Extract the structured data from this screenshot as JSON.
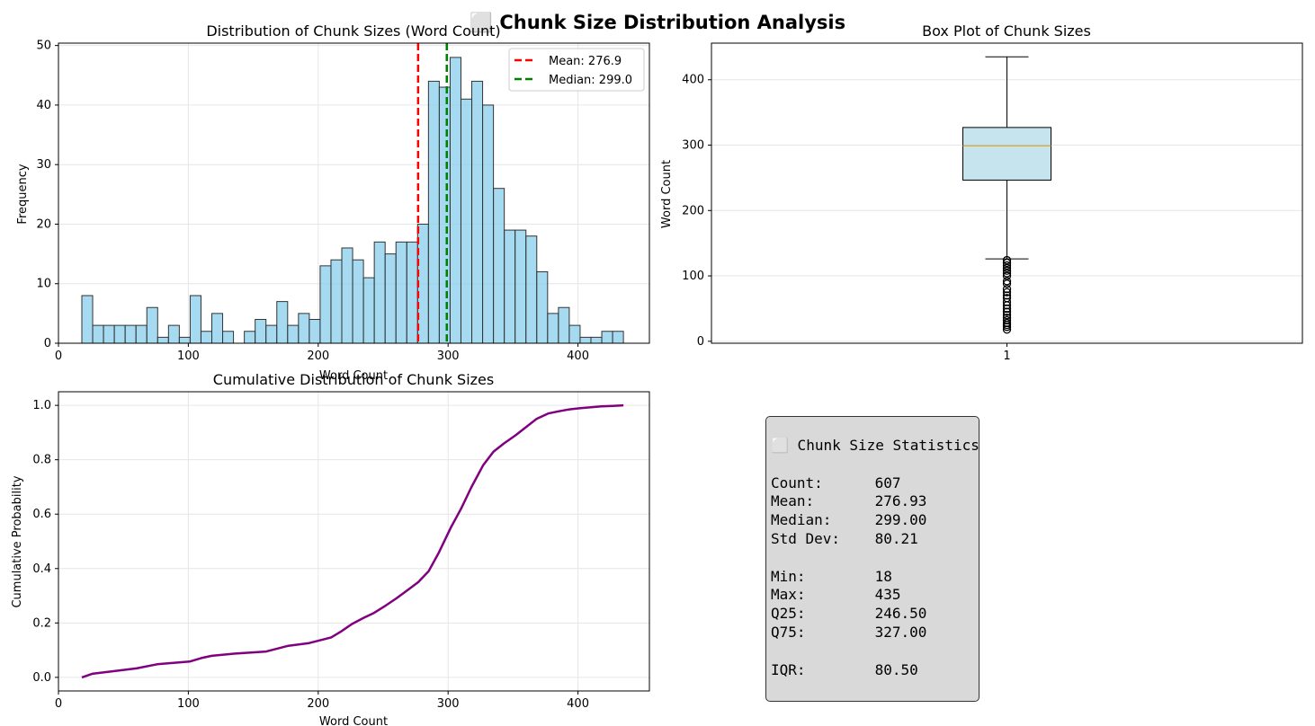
{
  "suptitle": "⬜ Chunk Size Distribution Analysis",
  "chart_data": [
    {
      "type": "bar",
      "title": "Distribution of Chunk Sizes (Word Count)",
      "xlabel": "Word Count",
      "ylabel": "Frequency",
      "xlim": [
        0,
        455
      ],
      "ylim": [
        0,
        50.4
      ],
      "xticks": [
        0,
        100,
        200,
        300,
        400
      ],
      "yticks": [
        0,
        10,
        20,
        30,
        40,
        50
      ],
      "bin_edges": [
        18,
        26.34,
        34.68,
        43.02,
        51.36,
        59.7,
        68.04,
        76.38,
        84.72,
        93.06,
        101.4,
        109.74,
        118.08,
        126.42,
        134.76,
        143.1,
        151.44,
        159.78,
        168.12,
        176.46,
        184.8,
        193.14,
        201.48,
        209.82,
        218.16,
        226.5,
        234.84,
        243.18,
        251.52,
        259.86,
        268.2,
        276.54,
        284.88,
        293.22,
        301.56,
        309.9,
        318.24,
        326.58,
        334.92,
        343.26,
        351.6,
        359.94,
        368.28,
        376.62,
        384.96,
        393.3,
        401.64,
        409.98,
        418.32,
        426.66,
        435
      ],
      "values": [
        8,
        3,
        3,
        3,
        3,
        3,
        6,
        1,
        3,
        1,
        8,
        2,
        5,
        2,
        0,
        2,
        4,
        3,
        7,
        3,
        5,
        4,
        13,
        14,
        16,
        14,
        11,
        17,
        15,
        17,
        17,
        20,
        44,
        43,
        48,
        41,
        44,
        40,
        26,
        19,
        19,
        18,
        12,
        5,
        6,
        3,
        1,
        1,
        2,
        2
      ],
      "bar_color": "#87CEEB",
      "vlines": [
        {
          "label": "Mean: 276.9",
          "x": 276.9,
          "color": "#ff0000"
        },
        {
          "label": "Median: 299.0",
          "x": 299.0,
          "color": "#008000"
        }
      ],
      "legend": "upper right"
    },
    {
      "type": "box",
      "title": "Box Plot of Chunk Sizes",
      "ylabel": "Word Count",
      "xticks": [
        "1"
      ],
      "yticks": [
        0,
        100,
        200,
        300,
        400
      ],
      "ylim": [
        -3,
        456
      ],
      "whisker_low": 126,
      "q1": 246.5,
      "median": 299,
      "q3": 327,
      "whisker_high": 435,
      "outliers": [
        18,
        22,
        25,
        28,
        32,
        36,
        40,
        45,
        50,
        55,
        60,
        66,
        70,
        75,
        80,
        88,
        92,
        100,
        104,
        108,
        112,
        116,
        120,
        124
      ],
      "box_color": "#ADD8E6"
    },
    {
      "type": "line",
      "title": "Cumulative Distribution of Chunk Sizes",
      "xlabel": "Word Count",
      "ylabel": "Cumulative Probability",
      "xlim": [
        0,
        455
      ],
      "ylim": [
        -0.05,
        1.05
      ],
      "xticks": [
        0,
        100,
        200,
        300,
        400
      ],
      "yticks": [
        0.0,
        0.2,
        0.4,
        0.6,
        0.8,
        1.0
      ],
      "color": "#800080",
      "x": [
        18,
        26,
        43,
        60,
        76,
        101,
        110,
        118,
        135,
        160,
        177,
        193,
        210,
        218,
        226,
        235,
        243,
        252,
        260,
        268,
        277,
        285,
        293,
        302,
        310,
        318,
        327,
        335,
        343,
        352,
        360,
        368,
        377,
        385,
        393,
        402,
        410,
        418,
        427,
        435
      ],
      "y": [
        0.0,
        0.013,
        0.023,
        0.033,
        0.048,
        0.058,
        0.071,
        0.079,
        0.087,
        0.095,
        0.116,
        0.126,
        0.147,
        0.17,
        0.196,
        0.219,
        0.237,
        0.264,
        0.29,
        0.318,
        0.35,
        0.39,
        0.46,
        0.55,
        0.62,
        0.7,
        0.78,
        0.83,
        0.86,
        0.89,
        0.92,
        0.95,
        0.97,
        0.978,
        0.985,
        0.99,
        0.993,
        0.996,
        0.998,
        1.0
      ]
    }
  ],
  "stats": {
    "heading": "⬜ Chunk Size Statistics",
    "count": "Count:      607",
    "mean": "Mean:       276.93",
    "median": "Median:     299.00",
    "std": "Std Dev:    80.21",
    "min": "Min:        18",
    "max": "Max:        435",
    "q25": "Q25:        246.50",
    "q75": "Q75:        327.00",
    "iqr": "IQR:        80.50"
  }
}
